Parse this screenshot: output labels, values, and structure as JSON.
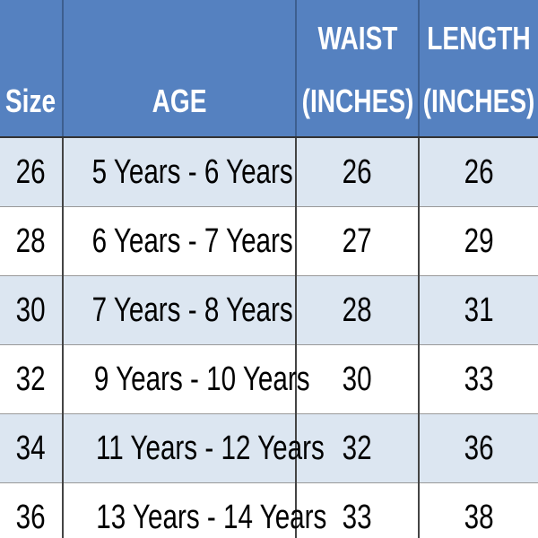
{
  "table": {
    "header": [
      "Size",
      "AGE",
      "WAIST (INCHES)",
      "LENGTH (INCHES)"
    ],
    "rows": [
      [
        26,
        "5 Years - 6 Years",
        26,
        26
      ],
      [
        28,
        "6 Years - 7 Years",
        27,
        29
      ],
      [
        30,
        "7 Years - 8 Years",
        28,
        31
      ],
      [
        32,
        "9 Years - 10 Years",
        30,
        33
      ],
      [
        34,
        "11 Years - 12 Years",
        32,
        36
      ],
      [
        36,
        "13 Years - 14 Years",
        33,
        38
      ]
    ]
  }
}
